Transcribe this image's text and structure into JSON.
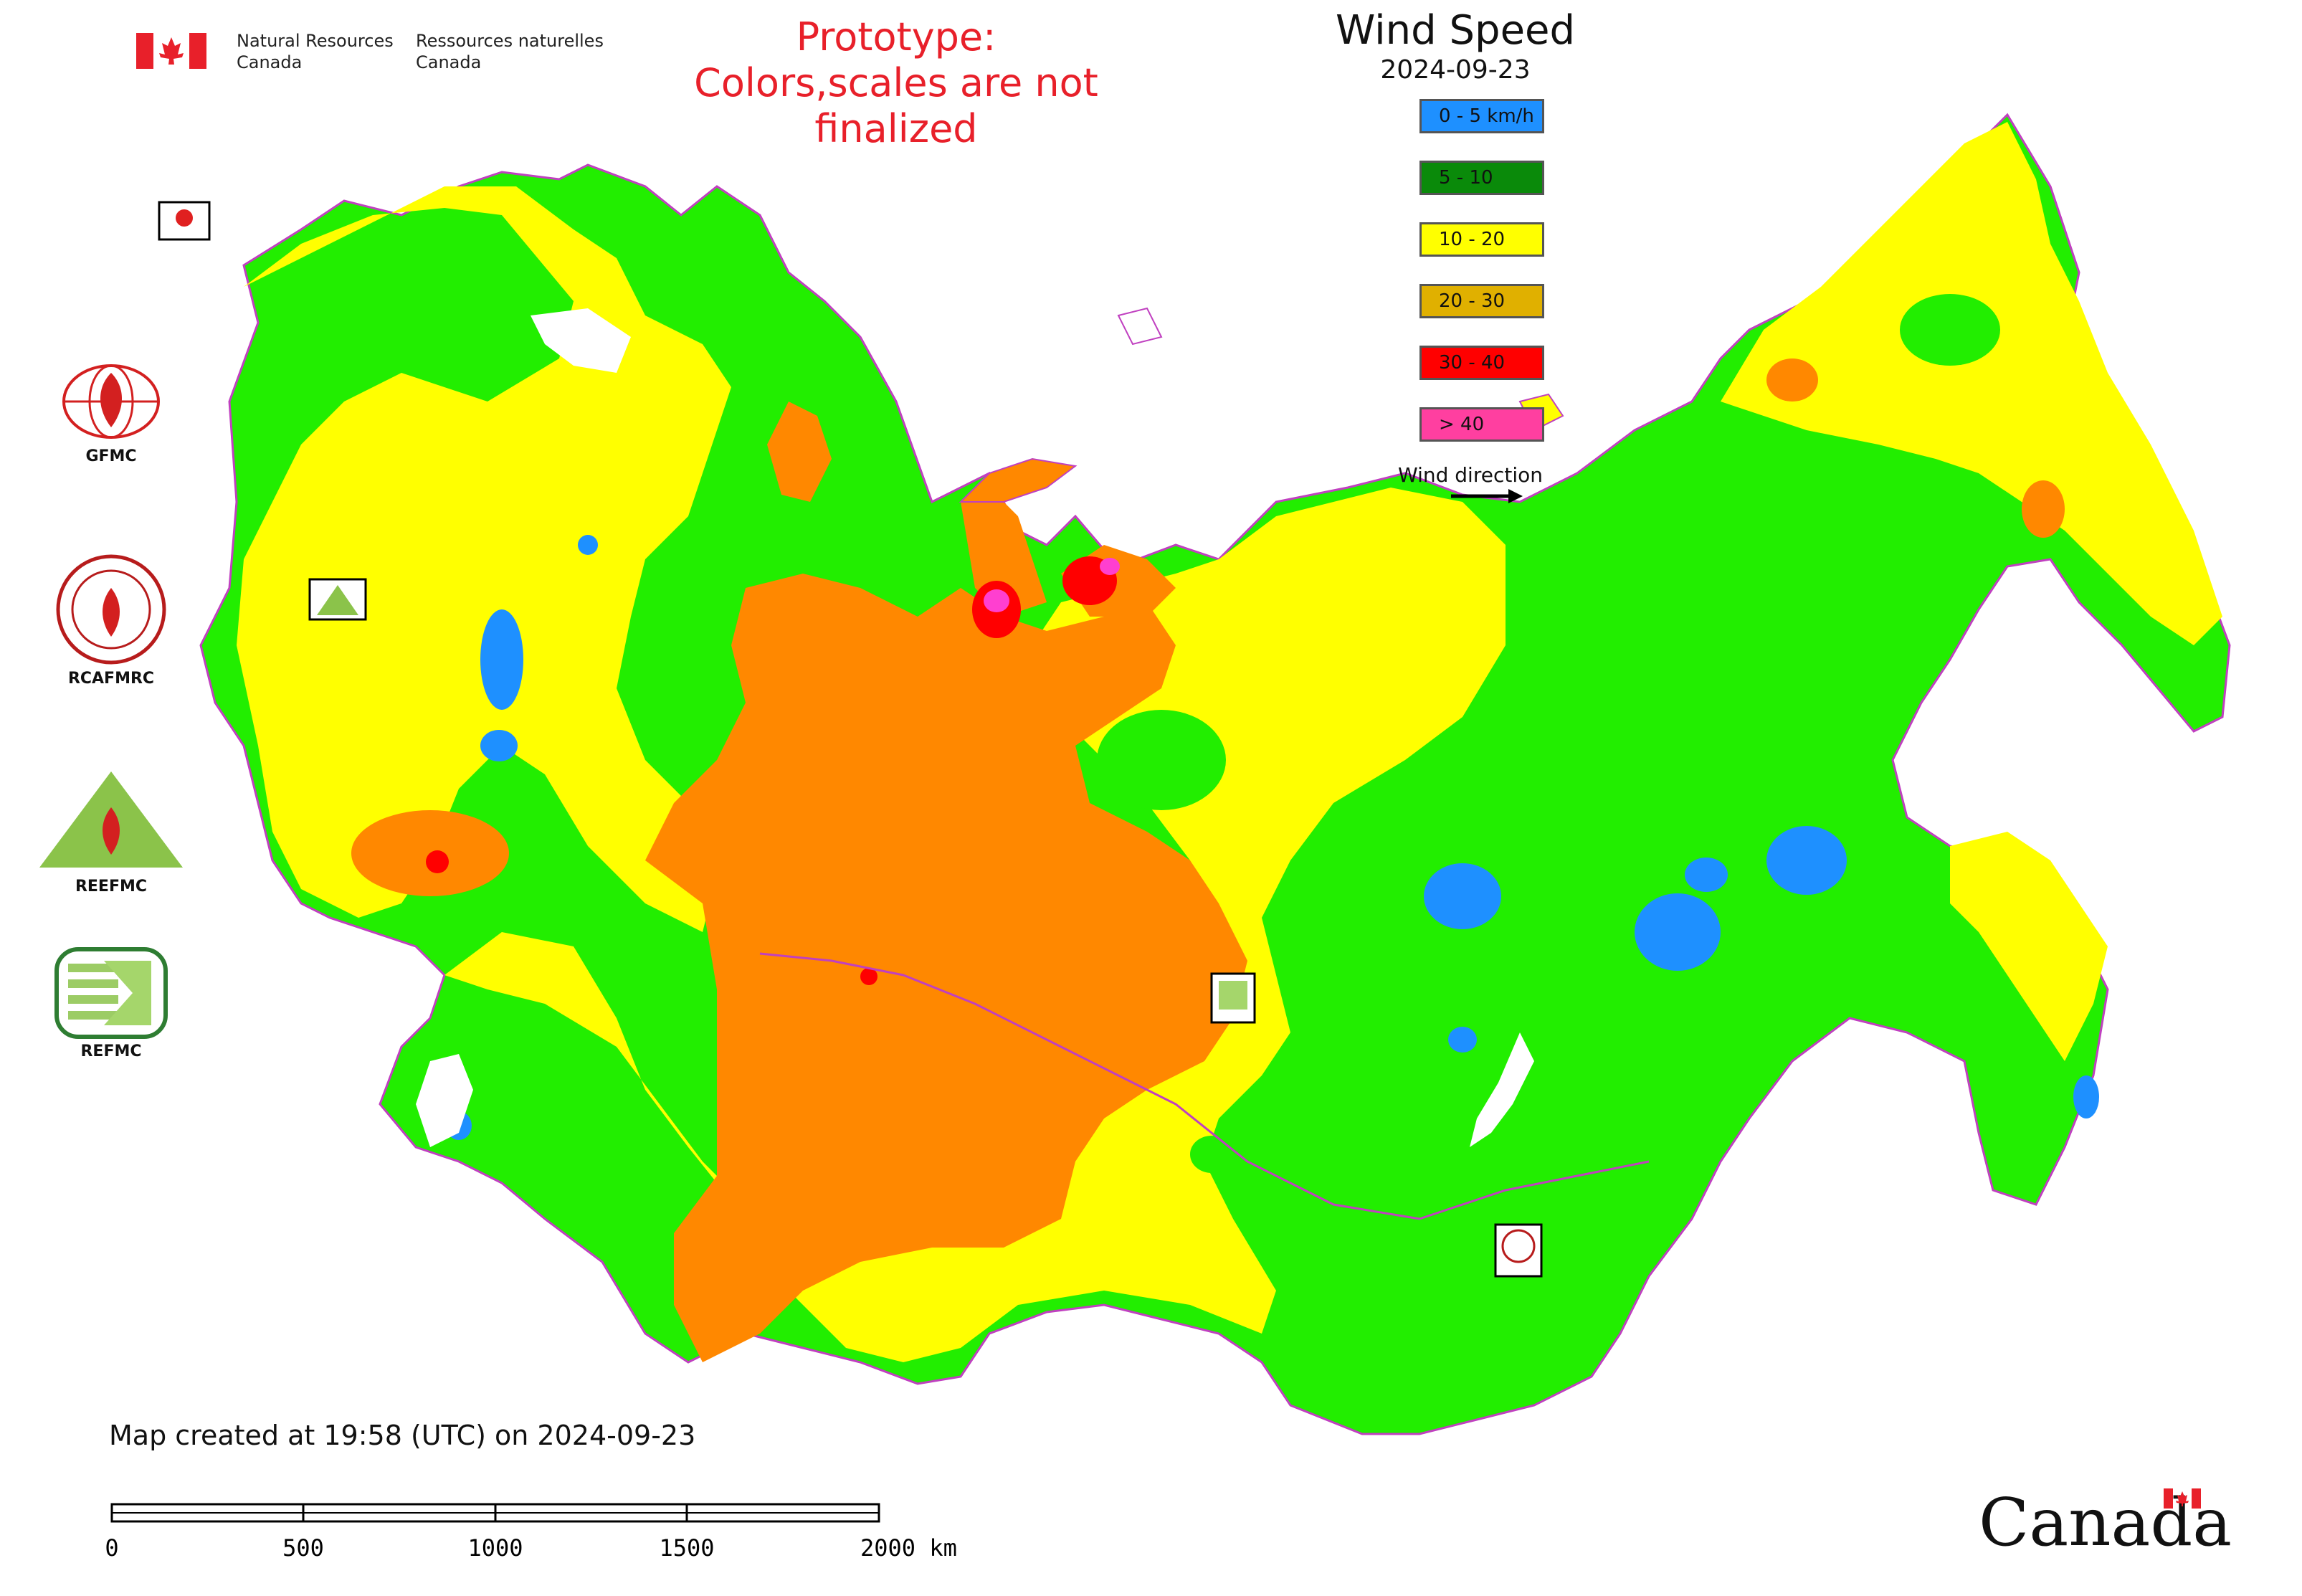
{
  "header": {
    "org_en_line1": "Natural Resources",
    "org_en_line2": "Canada",
    "org_fr_line1": "Ressources naturelles",
    "org_fr_line2": "Canada",
    "prototype_line1": "Prototype:",
    "prototype_line2": "Colors,scales are not finalized"
  },
  "legend": {
    "title": "Wind Speed",
    "date": "2024-09-23",
    "items": [
      {
        "label": "0 - 5 km/h",
        "color": "#1e90ff"
      },
      {
        "label": "5 - 10",
        "color": "#0a8a0a"
      },
      {
        "label": "10 - 20",
        "color": "#ffff00"
      },
      {
        "label": "20 - 30",
        "color": "#e0b000"
      },
      {
        "label": "30 - 40",
        "color": "#ff0000"
      },
      {
        "label": "> 40",
        "color": "#ff3fa0"
      }
    ],
    "wind_direction_label": "Wind direction"
  },
  "side_logos": [
    {
      "label": "GFMC"
    },
    {
      "label": "RCAFMRC"
    },
    {
      "label": "REEFMC"
    },
    {
      "label": "REFMC"
    }
  ],
  "map_colors": {
    "calm": "#1e90ff",
    "light": "#22ee00",
    "moderate": "#ffff00",
    "fresh": "#ff8800",
    "strong": "#ff0000",
    "extreme": "#ff3fd0",
    "water": "#ffffff",
    "border": "#c040c0"
  },
  "footer": {
    "created": "Map created at 19:58 (UTC) on 2024-09-23",
    "scale_ticks": [
      "0",
      "500",
      "1000",
      "1500",
      "2000 km"
    ],
    "wordmark": "Canada"
  }
}
